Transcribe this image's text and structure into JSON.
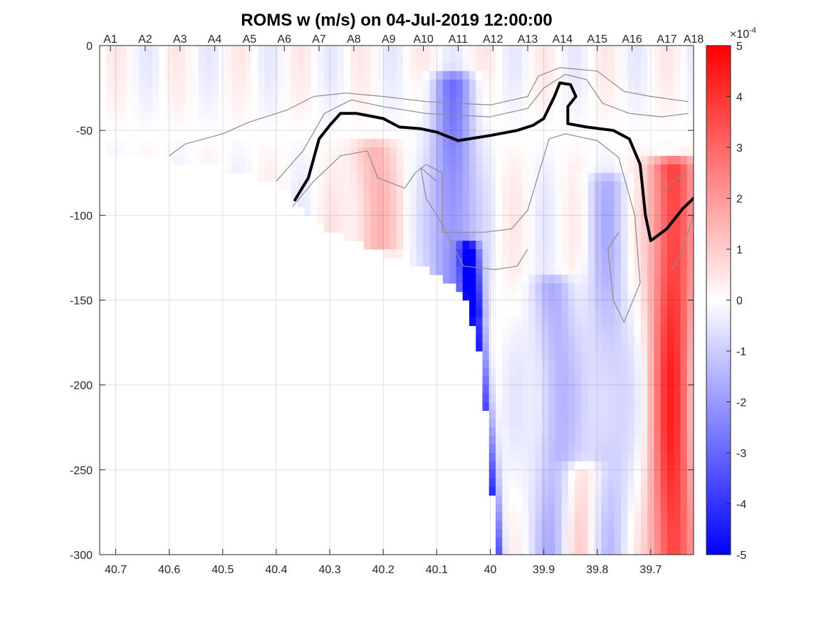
{
  "chart_data": {
    "type": "heatmap",
    "title": "ROMS w (m/s) on 04-Jul-2019 12:00:00",
    "xlabel": "",
    "ylabel": "",
    "x_axis": {
      "direction": "reversed",
      "xlim": [
        40.73,
        39.62
      ],
      "ticks": [
        40.7,
        40.6,
        40.5,
        40.4,
        40.3,
        40.2,
        40.1,
        40,
        39.9,
        39.8,
        39.7
      ],
      "tick_labels": [
        "40.7",
        "40.6",
        "40.5",
        "40.4",
        "40.3",
        "40.2",
        "40.1",
        "40",
        "39.9",
        "39.8",
        "39.7"
      ]
    },
    "y_axis": {
      "ylim": [
        -300,
        0
      ],
      "ticks": [
        0,
        -50,
        -100,
        -150,
        -200,
        -250,
        -300
      ],
      "tick_labels": [
        "0",
        "-50",
        "-100",
        "-150",
        "-200",
        "-250",
        "-300"
      ]
    },
    "top_axis": {
      "stations": [
        "A1",
        "A2",
        "A3",
        "A4",
        "A5",
        "A6",
        "A7",
        "A8",
        "A9",
        "A10",
        "A11",
        "A12",
        "A13",
        "A14",
        "A15",
        "A16",
        "A17",
        "A18"
      ],
      "latitudes": [
        40.71,
        40.645,
        40.58,
        40.515,
        40.45,
        40.385,
        40.32,
        40.255,
        40.19,
        40.125,
        40.06,
        39.995,
        39.93,
        39.865,
        39.8,
        39.735,
        39.67,
        39.62
      ]
    },
    "grid": true,
    "colorbar": {
      "limits": [
        -5,
        5
      ],
      "ticks": [
        5,
        4,
        3,
        2,
        1,
        0,
        -1,
        -2,
        -3,
        -4,
        -5
      ],
      "tick_labels": [
        "5",
        "4",
        "3",
        "2",
        "1",
        "0",
        "-1",
        "-2",
        "-3",
        "-4",
        "-5"
      ],
      "exponent_label": "×10",
      "exponent_power": "-4",
      "colors": {
        "low": "#0000ff",
        "mid": "#ffffff",
        "high": "#ff0000"
      }
    },
    "bathymetry_bottom": [
      [
        40.73,
        -64
      ],
      [
        40.6,
        -67
      ],
      [
        40.5,
        -72
      ],
      [
        40.4,
        -80
      ],
      [
        40.37,
        -90
      ],
      [
        40.3,
        -110
      ],
      [
        40.2,
        -122
      ],
      [
        40.1,
        -135
      ],
      [
        40.05,
        -145
      ],
      [
        40.02,
        -180
      ],
      [
        40.0,
        -240
      ],
      [
        39.99,
        -300
      ]
    ],
    "velocity_features": [
      {
        "kind": "core",
        "lat": 40.04,
        "depth_top": -120,
        "depth_bottom": -300,
        "value": -5,
        "slope": "offshore-deepening"
      },
      {
        "kind": "band",
        "lat": 40.07,
        "depth_top": -20,
        "depth_bottom": -150,
        "value": -2.5
      },
      {
        "kind": "band",
        "lat": 40.22,
        "depth_top": -60,
        "depth_bottom": -110,
        "value": 1.5
      },
      {
        "kind": "band",
        "lat": 39.66,
        "depth_top": -70,
        "depth_bottom": -300,
        "value": 4
      },
      {
        "kind": "band",
        "lat": 39.78,
        "depth_top": -80,
        "depth_bottom": -300,
        "value": -1.2
      },
      {
        "kind": "band",
        "lat": 39.88,
        "depth_top": -140,
        "depth_bottom": -300,
        "value": -1.5
      },
      {
        "kind": "band",
        "lat": 39.83,
        "depth_top": -250,
        "depth_bottom": -300,
        "value": 1.2
      }
    ],
    "thick_contour": [
      [
        40.365,
        -91
      ],
      [
        40.34,
        -78
      ],
      [
        40.32,
        -55
      ],
      [
        40.3,
        -47
      ],
      [
        40.28,
        -40
      ],
      [
        40.25,
        -40
      ],
      [
        40.2,
        -43
      ],
      [
        40.17,
        -48
      ],
      [
        40.13,
        -49
      ],
      [
        40.1,
        -51
      ],
      [
        40.06,
        -56
      ],
      [
        40.0,
        -53
      ],
      [
        39.95,
        -50
      ],
      [
        39.92,
        -47
      ],
      [
        39.9,
        -43
      ],
      [
        39.88,
        -30
      ],
      [
        39.87,
        -22
      ],
      [
        39.85,
        -23
      ],
      [
        39.84,
        -30
      ],
      [
        39.855,
        -36
      ],
      [
        39.855,
        -46
      ],
      [
        39.82,
        -48
      ],
      [
        39.77,
        -50
      ],
      [
        39.74,
        -55
      ],
      [
        39.72,
        -70
      ],
      [
        39.71,
        -100
      ],
      [
        39.7,
        -115
      ],
      [
        39.67,
        -108
      ],
      [
        39.64,
        -96
      ],
      [
        39.62,
        -90
      ]
    ],
    "thin_contours": [
      [
        [
          40.6,
          -65
        ],
        [
          40.57,
          -58
        ],
        [
          40.5,
          -52
        ],
        [
          40.45,
          -45
        ],
        [
          40.38,
          -38
        ],
        [
          40.33,
          -30
        ],
        [
          40.27,
          -28
        ],
        [
          40.2,
          -30
        ],
        [
          40.12,
          -33
        ],
        [
          40.0,
          -35
        ],
        [
          39.93,
          -30
        ],
        [
          39.91,
          -18
        ],
        [
          39.87,
          -13
        ],
        [
          39.8,
          -15
        ],
        [
          39.75,
          -27
        ],
        [
          39.7,
          -30
        ],
        [
          39.63,
          -33
        ]
      ],
      [
        [
          40.4,
          -80
        ],
        [
          40.35,
          -62
        ],
        [
          40.31,
          -40
        ],
        [
          40.26,
          -32
        ],
        [
          40.2,
          -36
        ],
        [
          40.12,
          -40
        ],
        [
          40.0,
          -42
        ],
        [
          39.93,
          -37
        ],
        [
          39.9,
          -25
        ],
        [
          39.86,
          -17
        ],
        [
          39.82,
          -20
        ],
        [
          39.79,
          -34
        ],
        [
          39.74,
          -40
        ],
        [
          39.68,
          -42
        ],
        [
          39.63,
          -40
        ]
      ],
      [
        [
          40.37,
          -95
        ],
        [
          40.33,
          -80
        ],
        [
          40.28,
          -65
        ],
        [
          40.23,
          -62
        ],
        [
          40.21,
          -78
        ],
        [
          40.16,
          -84
        ],
        [
          40.14,
          -75
        ],
        [
          40.12,
          -70
        ],
        [
          40.09,
          -75
        ],
        [
          40.09,
          -110
        ],
        [
          40.05,
          -110
        ],
        [
          40.01,
          -110
        ],
        [
          39.96,
          -108
        ],
        [
          39.93,
          -97
        ],
        [
          39.89,
          -55
        ],
        [
          39.86,
          -52
        ],
        [
          39.8,
          -56
        ],
        [
          39.76,
          -66
        ],
        [
          39.73,
          -100
        ],
        [
          39.72,
          -140
        ],
        [
          39.75,
          -163
        ],
        [
          39.77,
          -150
        ],
        [
          39.78,
          -120
        ],
        [
          39.76,
          -110
        ]
      ],
      [
        [
          40.1,
          -80
        ],
        [
          40.13,
          -72
        ],
        [
          40.12,
          -90
        ],
        [
          40.09,
          -105
        ],
        [
          40.07,
          -118
        ],
        [
          40.05,
          -130
        ],
        [
          39.99,
          -132
        ],
        [
          39.95,
          -130
        ],
        [
          39.93,
          -120
        ]
      ],
      [
        [
          39.68,
          -88
        ],
        [
          39.66,
          -80
        ],
        [
          39.63,
          -75
        ]
      ],
      [
        [
          39.66,
          -132
        ],
        [
          39.64,
          -120
        ],
        [
          39.62,
          -100
        ]
      ]
    ]
  }
}
